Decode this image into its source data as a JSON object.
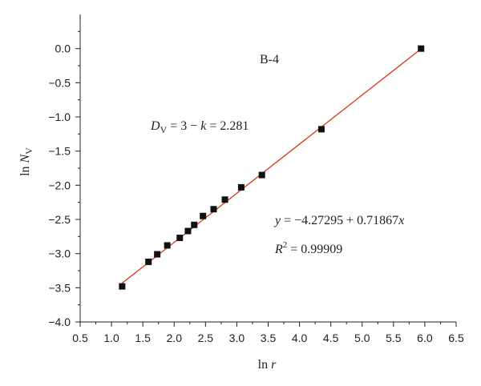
{
  "chart_data": {
    "type": "scatter",
    "panel_label": "B-4",
    "xlabel_main": "ln",
    "xlabel_var": "r",
    "ylabel_main": "ln",
    "ylabel_var": "N",
    "ylabel_sub": "V",
    "xlim": [
      0.5,
      6.5
    ],
    "ylim": [
      -4.0,
      0.5
    ],
    "xticks": [
      0.5,
      1.0,
      1.5,
      2.0,
      2.5,
      3.0,
      3.5,
      4.0,
      4.5,
      5.0,
      5.5,
      6.0,
      6.5
    ],
    "xtick_labels": [
      "0.5",
      "1.0",
      "1.5",
      "2.0",
      "2.5",
      "3.0",
      "3.5",
      "4.0",
      "4.5",
      "5.0",
      "5.5",
      "6.0",
      "6.5"
    ],
    "yticks": [
      0.0,
      -0.5,
      -1.0,
      -1.5,
      -2.0,
      -2.5,
      -3.0,
      -3.5,
      -4.0
    ],
    "ytick_labels": [
      "0.0",
      "−0.5",
      "−1.0",
      "−1.5",
      "−2.0",
      "−2.5",
      "−3.0",
      "−3.5",
      "−4.0"
    ],
    "points": {
      "x": [
        1.17,
        1.59,
        1.73,
        1.89,
        2.09,
        2.22,
        2.32,
        2.46,
        2.63,
        2.81,
        3.07,
        3.4,
        4.35,
        5.94
      ],
      "y": [
        -3.48,
        -3.12,
        -3.01,
        -2.88,
        -2.77,
        -2.67,
        -2.58,
        -2.45,
        -2.35,
        -2.21,
        -2.03,
        -1.85,
        -1.18,
        0.0
      ]
    },
    "fit_line": {
      "intercept": -4.27295,
      "slope": 0.71867,
      "x_range": [
        1.17,
        5.94
      ],
      "color": "#d43a1a"
    },
    "marker_color": "#111111",
    "annotations": {
      "dimension_D": "D",
      "dimension_sub": "V",
      "dimension_rest": " = 3 − ",
      "dimension_k": "k",
      "dimension_value": " = 2.281",
      "eq_y": "y",
      "eq_rest": " = −4.27295 + 0.71867",
      "eq_x": "x",
      "r2_R": "R",
      "r2_sup": "2",
      "r2_value": " = 0.99909"
    },
    "grid": false
  }
}
